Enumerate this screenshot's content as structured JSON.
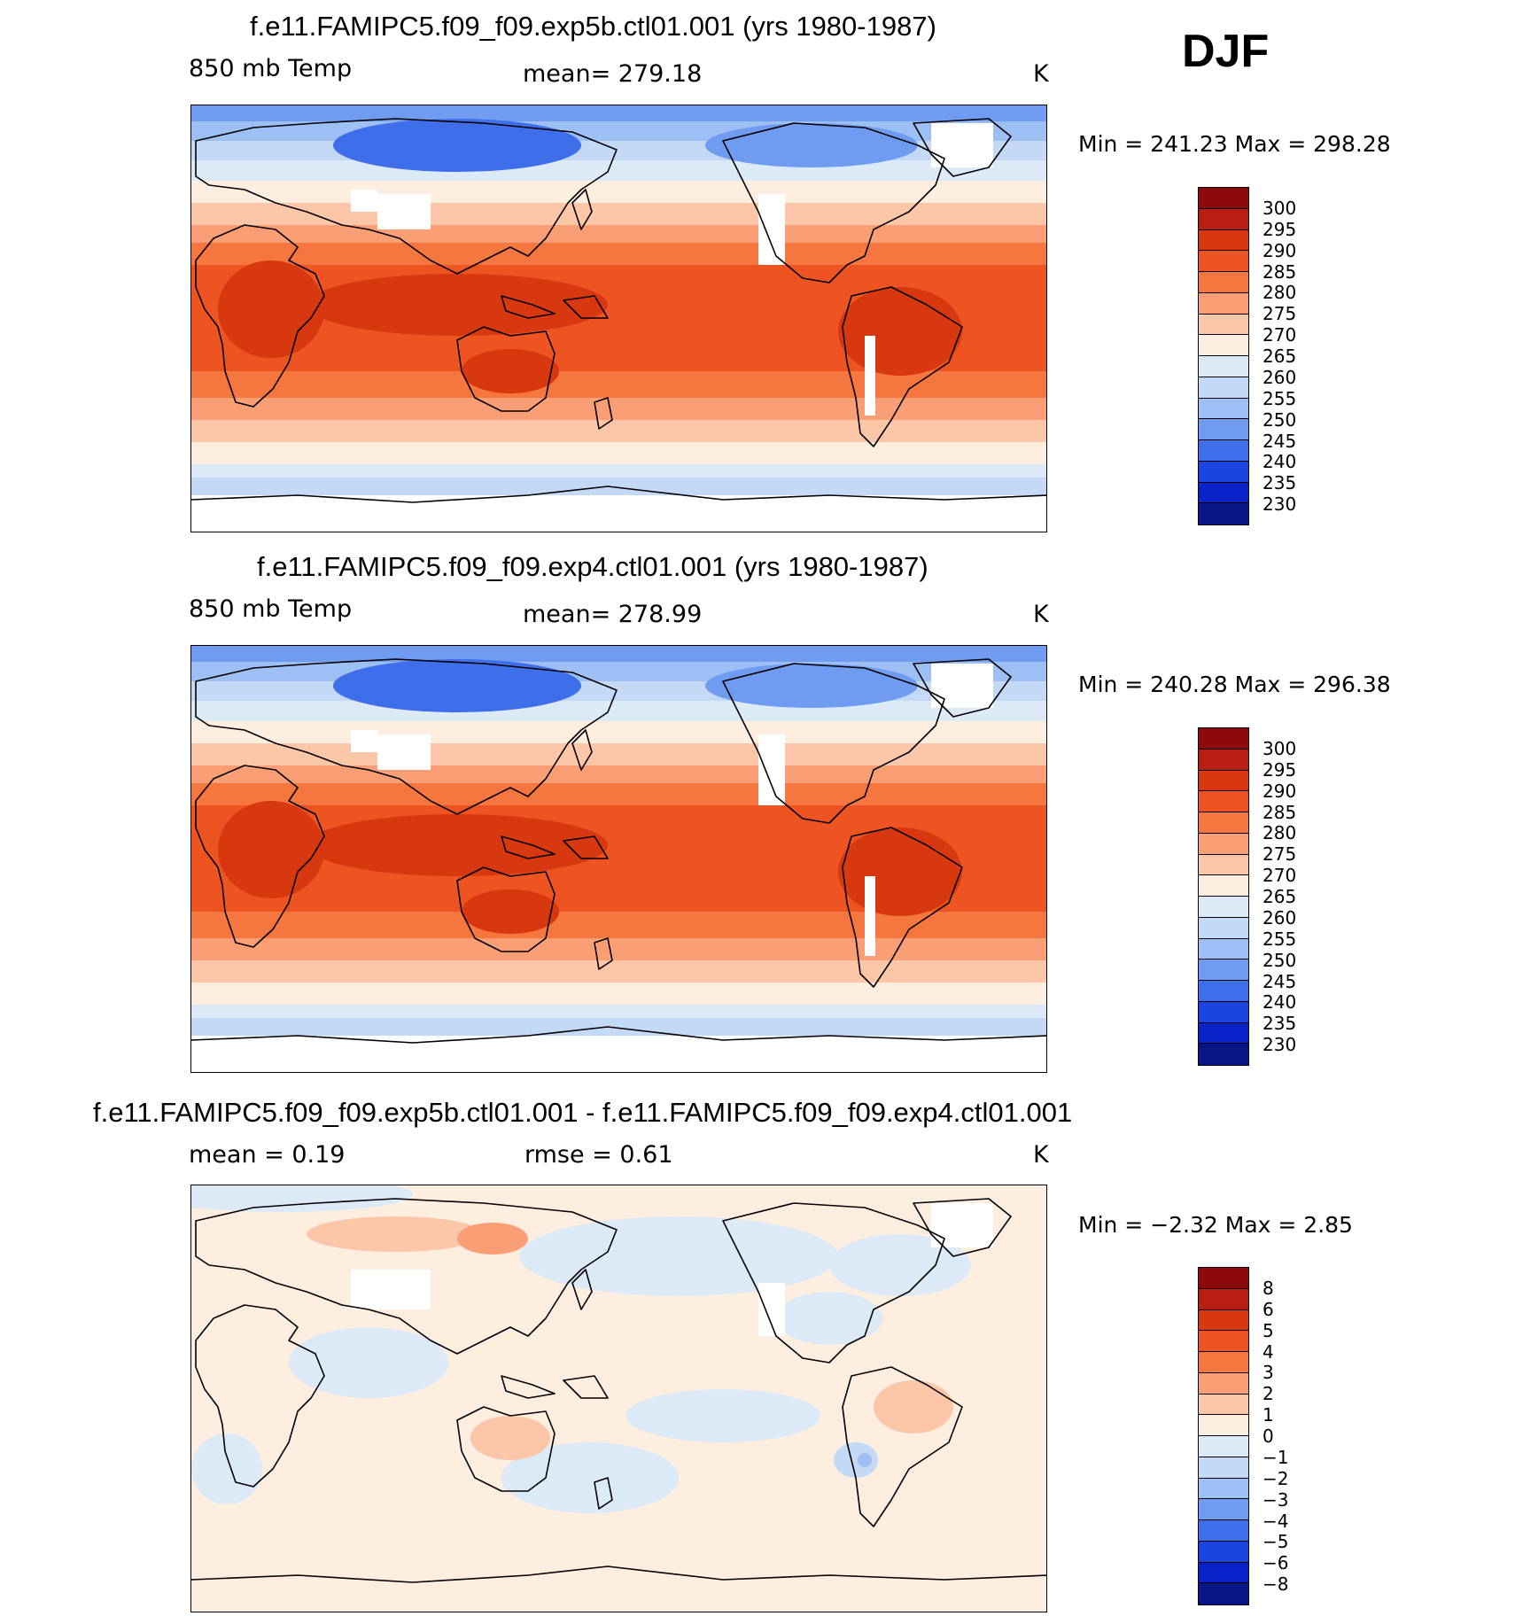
{
  "season": "DJF",
  "panels": [
    {
      "title": "f.e11.FAMIPC5.f09_f09.exp5b.ctl01.001 (yrs 1980-1987)",
      "left_label": "850 mb Temp",
      "center_label": "mean=  279.18",
      "right_label": "K",
      "minmax": "Min  =  241.23  Max  =  298.28",
      "map_type": "absolute",
      "colorbar": {
        "labels": [
          "300",
          "295",
          "290",
          "285",
          "280",
          "275",
          "270",
          "265",
          "260",
          "255",
          "250",
          "245",
          "240",
          "235",
          "230"
        ],
        "colors": [
          "#8c0a0a",
          "#b81e12",
          "#d8380f",
          "#ee5422",
          "#f6763f",
          "#f99e75",
          "#fcc6a8",
          "#fdeee0",
          "#dceaf8",
          "#c3d9f5",
          "#9dbff3",
          "#6f9bf0",
          "#3f6eea",
          "#1b45e0",
          "#0a22c8",
          "#061686"
        ]
      }
    },
    {
      "title": "f.e11.FAMIPC5.f09_f09.exp4.ctl01.001 (yrs 1980-1987)",
      "left_label": "850 mb Temp",
      "center_label": "mean=  278.99",
      "right_label": "K",
      "minmax": "Min  =  240.28  Max  =  296.38",
      "map_type": "absolute",
      "colorbar": {
        "labels": [
          "300",
          "295",
          "290",
          "285",
          "280",
          "275",
          "270",
          "265",
          "260",
          "255",
          "250",
          "245",
          "240",
          "235",
          "230"
        ],
        "colors": [
          "#8c0a0a",
          "#b81e12",
          "#d8380f",
          "#ee5422",
          "#f6763f",
          "#f99e75",
          "#fcc6a8",
          "#fdeee0",
          "#dceaf8",
          "#c3d9f5",
          "#9dbff3",
          "#6f9bf0",
          "#3f6eea",
          "#1b45e0",
          "#0a22c8",
          "#061686"
        ]
      }
    },
    {
      "title": "f.e11.FAMIPC5.f09_f09.exp5b.ctl01.001 - f.e11.FAMIPC5.f09_f09.exp4.ctl01.001",
      "left_label": "mean =     0.19",
      "center_label": "rmse =     0.61",
      "right_label": "K",
      "minmax": "Min  =    −2.32  Max  =     2.85",
      "map_type": "difference",
      "colorbar": {
        "labels": [
          "8",
          "6",
          "5",
          "4",
          "3",
          "2",
          "1",
          "0",
          "−1",
          "−2",
          "−3",
          "−4",
          "−5",
          "−6",
          "−8"
        ],
        "colors": [
          "#8c0a0a",
          "#b81e12",
          "#d8380f",
          "#ee5422",
          "#f6763f",
          "#f99e75",
          "#fcc6a8",
          "#fdeee0",
          "#dceaf8",
          "#c3d9f5",
          "#9dbff3",
          "#6f9bf0",
          "#3f6eea",
          "#1b45e0",
          "#0a22c8",
          "#061686"
        ]
      }
    }
  ]
}
